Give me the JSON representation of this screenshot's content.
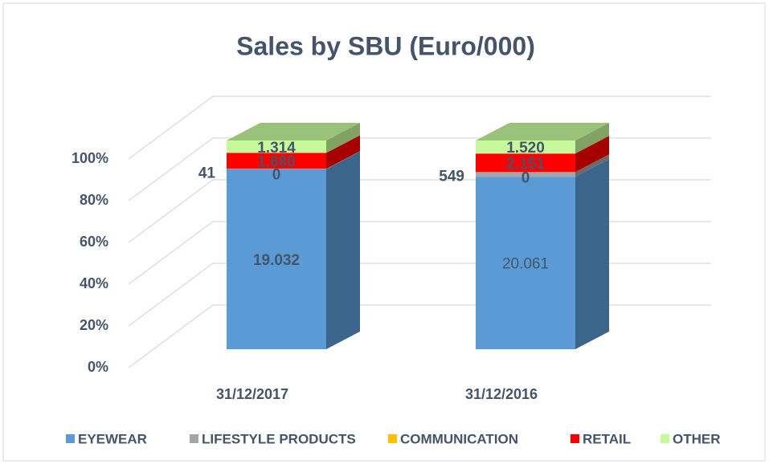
{
  "chart_data": {
    "type": "bar3d_stacked_percent",
    "title": "Sales by SBU (Euro/000)",
    "categories": [
      "31/12/2017",
      "31/12/2016"
    ],
    "series": [
      {
        "name": "EYEWEAR",
        "color": "#5b9bd5",
        "values": [
          19032,
          20061
        ],
        "value_labels": [
          "19.032",
          "20.061"
        ]
      },
      {
        "name": "LIFESTYLE PRODUCTS",
        "color": "#a5a5a5",
        "values": [
          41,
          549
        ],
        "value_labels": [
          "41",
          "549"
        ]
      },
      {
        "name": "COMMUNICATION",
        "color": "#ffc000",
        "values": [
          0,
          0
        ],
        "value_labels": [
          "0",
          "0"
        ]
      },
      {
        "name": "RETAIL",
        "color": "#ff0000",
        "values": [
          1680,
          2151
        ],
        "value_labels": [
          "1.680",
          "2.151"
        ]
      },
      {
        "name": "OTHER",
        "color": "#c6f99a",
        "values": [
          1314,
          1520
        ],
        "value_labels": [
          "1.314",
          "1.520"
        ]
      }
    ],
    "ylim": [
      0,
      100
    ],
    "yticks": [
      {
        "value": 0,
        "label": "0%"
      },
      {
        "value": 20,
        "label": "20%"
      },
      {
        "value": 40,
        "label": "40%"
      },
      {
        "value": 60,
        "label": "60%"
      },
      {
        "value": 80,
        "label": "80%"
      },
      {
        "value": 100,
        "label": "100%"
      }
    ],
    "grid": true,
    "legend": "bottom"
  }
}
